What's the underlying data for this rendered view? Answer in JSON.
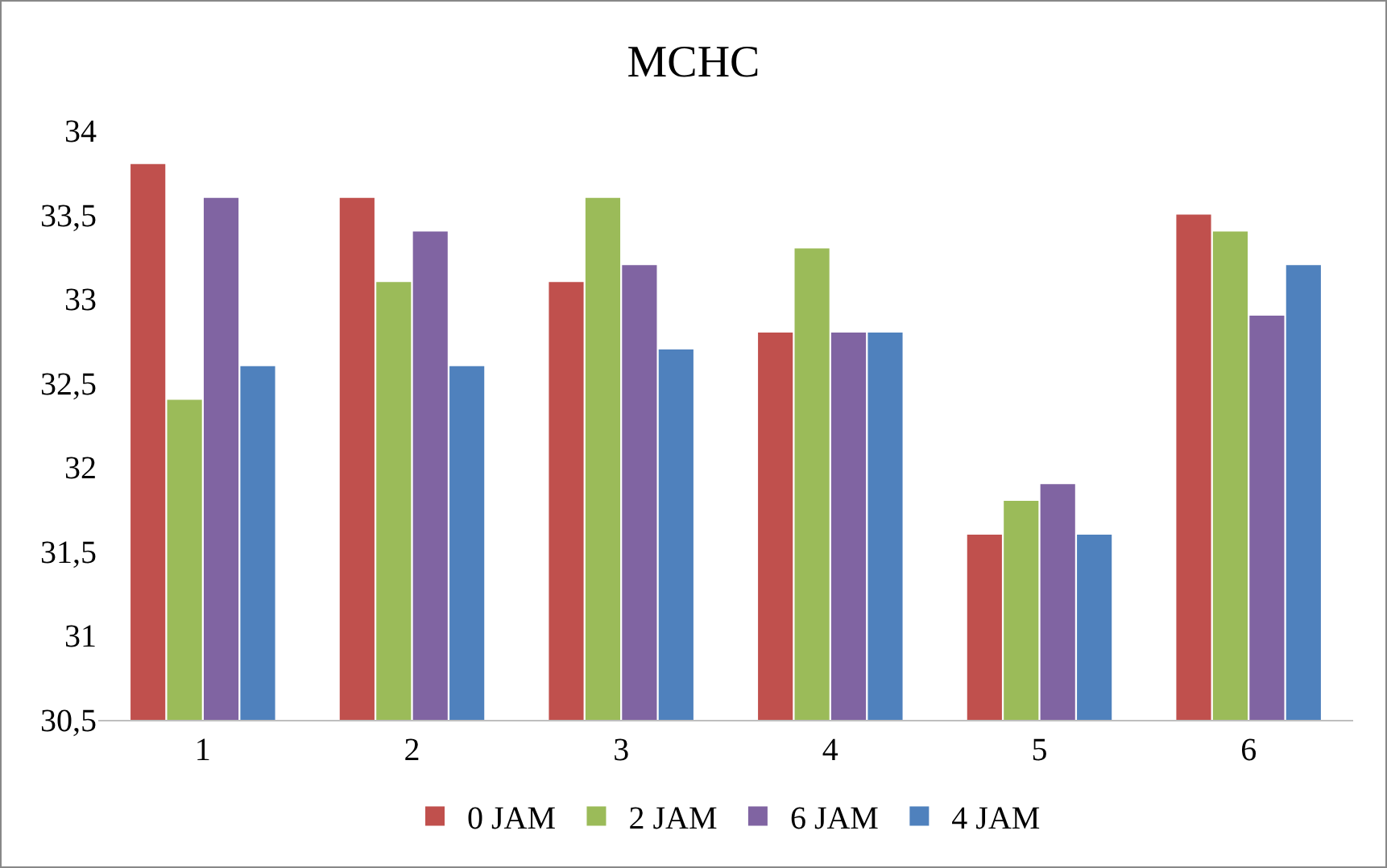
{
  "chart_data": {
    "type": "bar",
    "title": "MCHC",
    "categories": [
      "1",
      "2",
      "3",
      "4",
      "5",
      "6"
    ],
    "series": [
      {
        "name": "0 JAM",
        "color": "#c0504d",
        "values": [
          33.8,
          33.6,
          33.1,
          32.8,
          31.6,
          33.5
        ]
      },
      {
        "name": "2 JAM",
        "color": "#9bbb59",
        "values": [
          32.4,
          33.1,
          33.6,
          33.3,
          31.8,
          33.4
        ]
      },
      {
        "name": "6 JAM",
        "color": "#8064a2",
        "values": [
          33.6,
          33.4,
          33.2,
          32.8,
          31.9,
          32.9
        ]
      },
      {
        "name": "4 JAM",
        "color": "#4f81bd",
        "values": [
          32.6,
          32.6,
          32.7,
          32.8,
          31.6,
          33.2
        ]
      }
    ],
    "ylim": [
      30.5,
      34
    ],
    "yticks": [
      {
        "value": 30.5,
        "label": "30,5"
      },
      31,
      {
        "value": 31.5,
        "label": "31,5"
      },
      32,
      {
        "value": 32.5,
        "label": "32,5"
      },
      33,
      {
        "value": 33.5,
        "label": "33,5"
      },
      34
    ],
    "grid": false,
    "legend": "bottom"
  }
}
